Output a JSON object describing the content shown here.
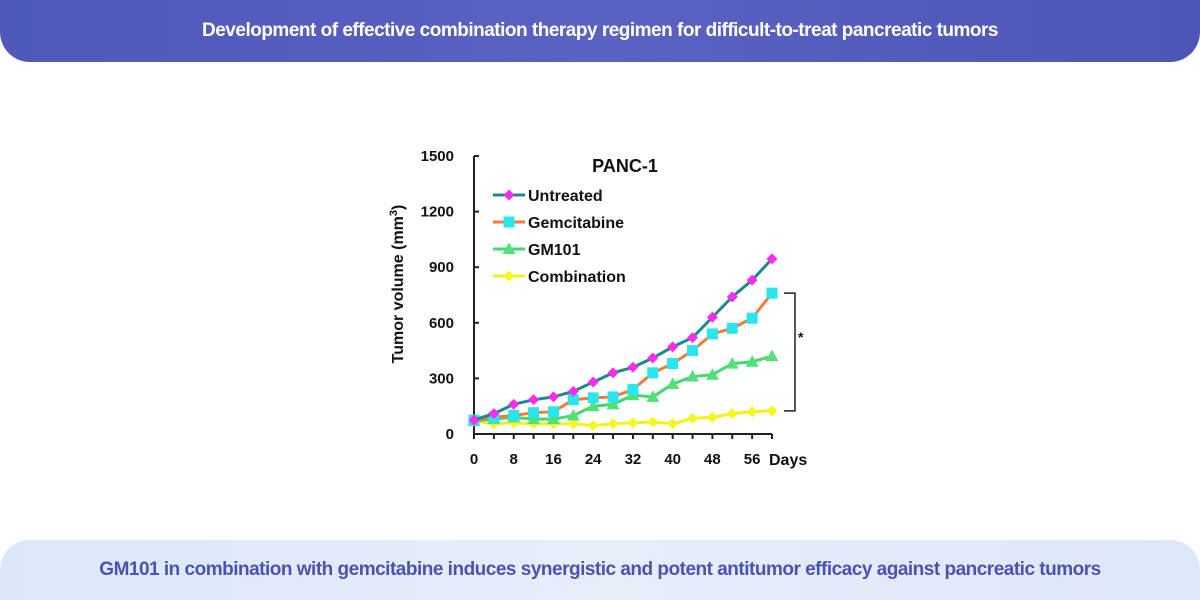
{
  "header": {
    "title": "Development of effective combination therapy regimen for difficult-to-treat pancreatic tumors"
  },
  "footer": {
    "caption": "GM101 in combination with gemcitabine induces synergistic and potent antitumor efficacy against pancreatic tumors"
  },
  "chart_data": {
    "type": "line",
    "title": "PANC-1",
    "xlabel": "Days",
    "ylabel": "Tumor volume (mm",
    "ylabel_sup": "3",
    "ylabel_close": ")",
    "xlim": [
      0,
      60
    ],
    "ylim": [
      0,
      1500
    ],
    "xticks": [
      0,
      8,
      16,
      24,
      32,
      40,
      48,
      56
    ],
    "yticks": [
      0,
      300,
      600,
      900,
      1200,
      1500
    ],
    "grid": false,
    "legend_position": "top-left",
    "significance_label": "*",
    "x": [
      0,
      4,
      8,
      12,
      16,
      20,
      24,
      28,
      32,
      36,
      40,
      44,
      48,
      52,
      56,
      60
    ],
    "series": [
      {
        "name": "Untreated",
        "line_color": "#1b8a8f",
        "marker_color": "#ff2cf0",
        "marker": "diamond",
        "values": [
          75,
          110,
          160,
          185,
          200,
          230,
          280,
          330,
          360,
          410,
          470,
          520,
          630,
          740,
          830,
          945
        ]
      },
      {
        "name": "Gemcitabine",
        "line_color": "#f47a3a",
        "marker_color": "#27e6f0",
        "marker": "square",
        "values": [
          75,
          90,
          100,
          115,
          120,
          185,
          195,
          200,
          240,
          330,
          380,
          450,
          540,
          570,
          625,
          760
        ]
      },
      {
        "name": "GM101",
        "line_color": "#46d870",
        "marker_color": "#52e07a",
        "marker": "triangle",
        "values": [
          70,
          80,
          90,
          80,
          80,
          100,
          150,
          160,
          210,
          200,
          270,
          310,
          320,
          380,
          390,
          420
        ]
      },
      {
        "name": "Combination",
        "line_color": "#f2f21c",
        "marker_color": "#f7f720",
        "marker": "diamond",
        "values": [
          70,
          55,
          60,
          55,
          55,
          55,
          45,
          55,
          60,
          65,
          55,
          85,
          90,
          110,
          120,
          125
        ]
      }
    ]
  }
}
